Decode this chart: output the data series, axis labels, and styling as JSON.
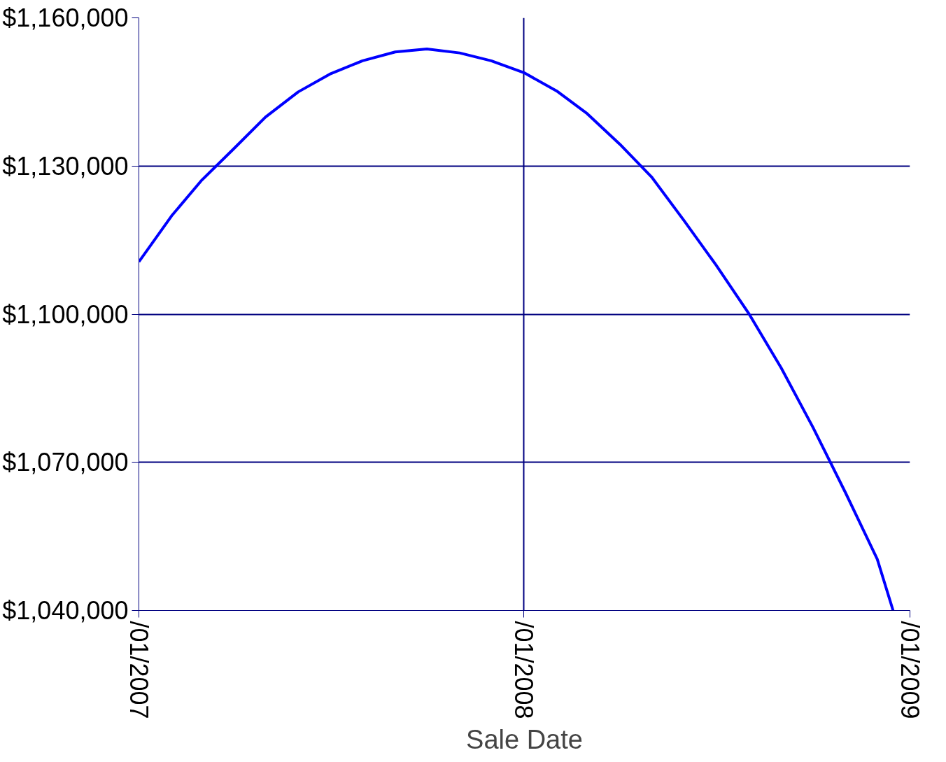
{
  "chart_data": {
    "type": "line",
    "xlabel": "Sale Date",
    "x": [
      "2007-01-01",
      "2007-02-01",
      "2007-03-01",
      "2007-04-01",
      "2007-05-01",
      "2007-06-01",
      "2007-07-01",
      "2007-08-01",
      "2007-09-01",
      "2007-10-01",
      "2007-11-01",
      "2007-12-01",
      "2008-01-01",
      "2008-02-01",
      "2008-03-01",
      "2008-04-01",
      "2008-05-01",
      "2008-06-01",
      "2008-07-01",
      "2008-08-01",
      "2008-09-01",
      "2008-10-01",
      "2008-11-01",
      "2008-12-01",
      "2008-12-16"
    ],
    "series": [
      {
        "color": "#0000ff",
        "values": [
          1110600,
          1119900,
          1127000,
          1133500,
          1139900,
          1145000,
          1148600,
          1151300,
          1153100,
          1153700,
          1152900,
          1151300,
          1148900,
          1145200,
          1140600,
          1134400,
          1127800,
          1118900,
          1110000,
          1100200,
          1089100,
          1077100,
          1063800,
          1050400,
          1040000
        ]
      }
    ],
    "xlim": [
      "2007-01-01",
      "2009-01-01"
    ],
    "xticks": [
      {
        "value": "2007-01-01",
        "label": "/01/2007"
      },
      {
        "value": "2008-01-01",
        "label": "/01/2008"
      },
      {
        "value": "2009-01-01",
        "label": "/01/2009"
      }
    ],
    "ylim": [
      1040000,
      1160000
    ],
    "yticks": [
      {
        "value": 1040000,
        "label": "$1,040,000"
      },
      {
        "value": 1070000,
        "label": "$1,070,000"
      },
      {
        "value": 1100000,
        "label": "$1,100,000"
      },
      {
        "value": 1130000,
        "label": "$1,130,000"
      },
      {
        "value": 1160000,
        "label": "$1,160,000"
      }
    ],
    "grid": true
  }
}
